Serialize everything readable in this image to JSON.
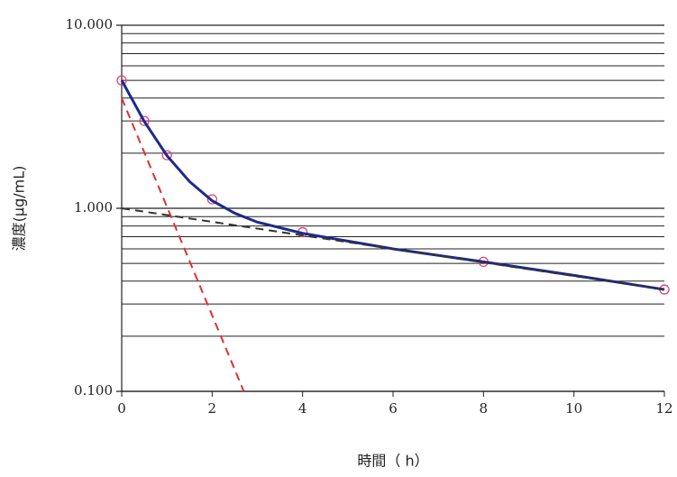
{
  "chart_data": {
    "type": "line",
    "x_label": "時間（ h）",
    "y_label": "濃度(μg/mL)",
    "log_y": true,
    "grid": true,
    "xlim": [
      0,
      12
    ],
    "xticks": [
      0,
      2,
      4,
      6,
      8,
      10,
      12
    ],
    "ylim": [
      0.1,
      10
    ],
    "yticks": [
      {
        "value": 0.1,
        "label": "0.100"
      },
      {
        "value": 1,
        "label": "1.000"
      },
      {
        "value": 10,
        "label": "10.000"
      }
    ],
    "minor_yticks": [
      0.2,
      0.3,
      0.4,
      0.5,
      0.6,
      0.7,
      0.8,
      0.9,
      2,
      3,
      4,
      5,
      6,
      7,
      8,
      9
    ],
    "series": [
      {
        "color": "#e8407a",
        "line_style": "none",
        "marker": "circle",
        "x": [
          0,
          0.5,
          1,
          2,
          4,
          8,
          12
        ],
        "values": [
          5.0,
          3.0,
          1.95,
          1.12,
          0.74,
          0.51,
          0.36
        ]
      },
      {
        "color": "#1c2a8c",
        "line_style": "solid",
        "marker": "none",
        "x": [
          0,
          0.5,
          1,
          1.5,
          2,
          2.5,
          3,
          4,
          6,
          8,
          10,
          12
        ],
        "values": [
          5.0,
          2.98,
          1.94,
          1.4,
          1.1,
          0.94,
          0.84,
          0.73,
          0.6,
          0.51,
          0.43,
          0.36
        ]
      },
      {
        "color": "#e03030",
        "line_style": "dashed",
        "marker": "none",
        "x": [
          0,
          2.7
        ],
        "values": [
          4.0,
          0.1
        ]
      },
      {
        "color": "#333333",
        "line_style": "dashed",
        "marker": "none",
        "x": [
          0,
          12
        ],
        "values": [
          1.0,
          0.36
        ]
      }
    ]
  }
}
